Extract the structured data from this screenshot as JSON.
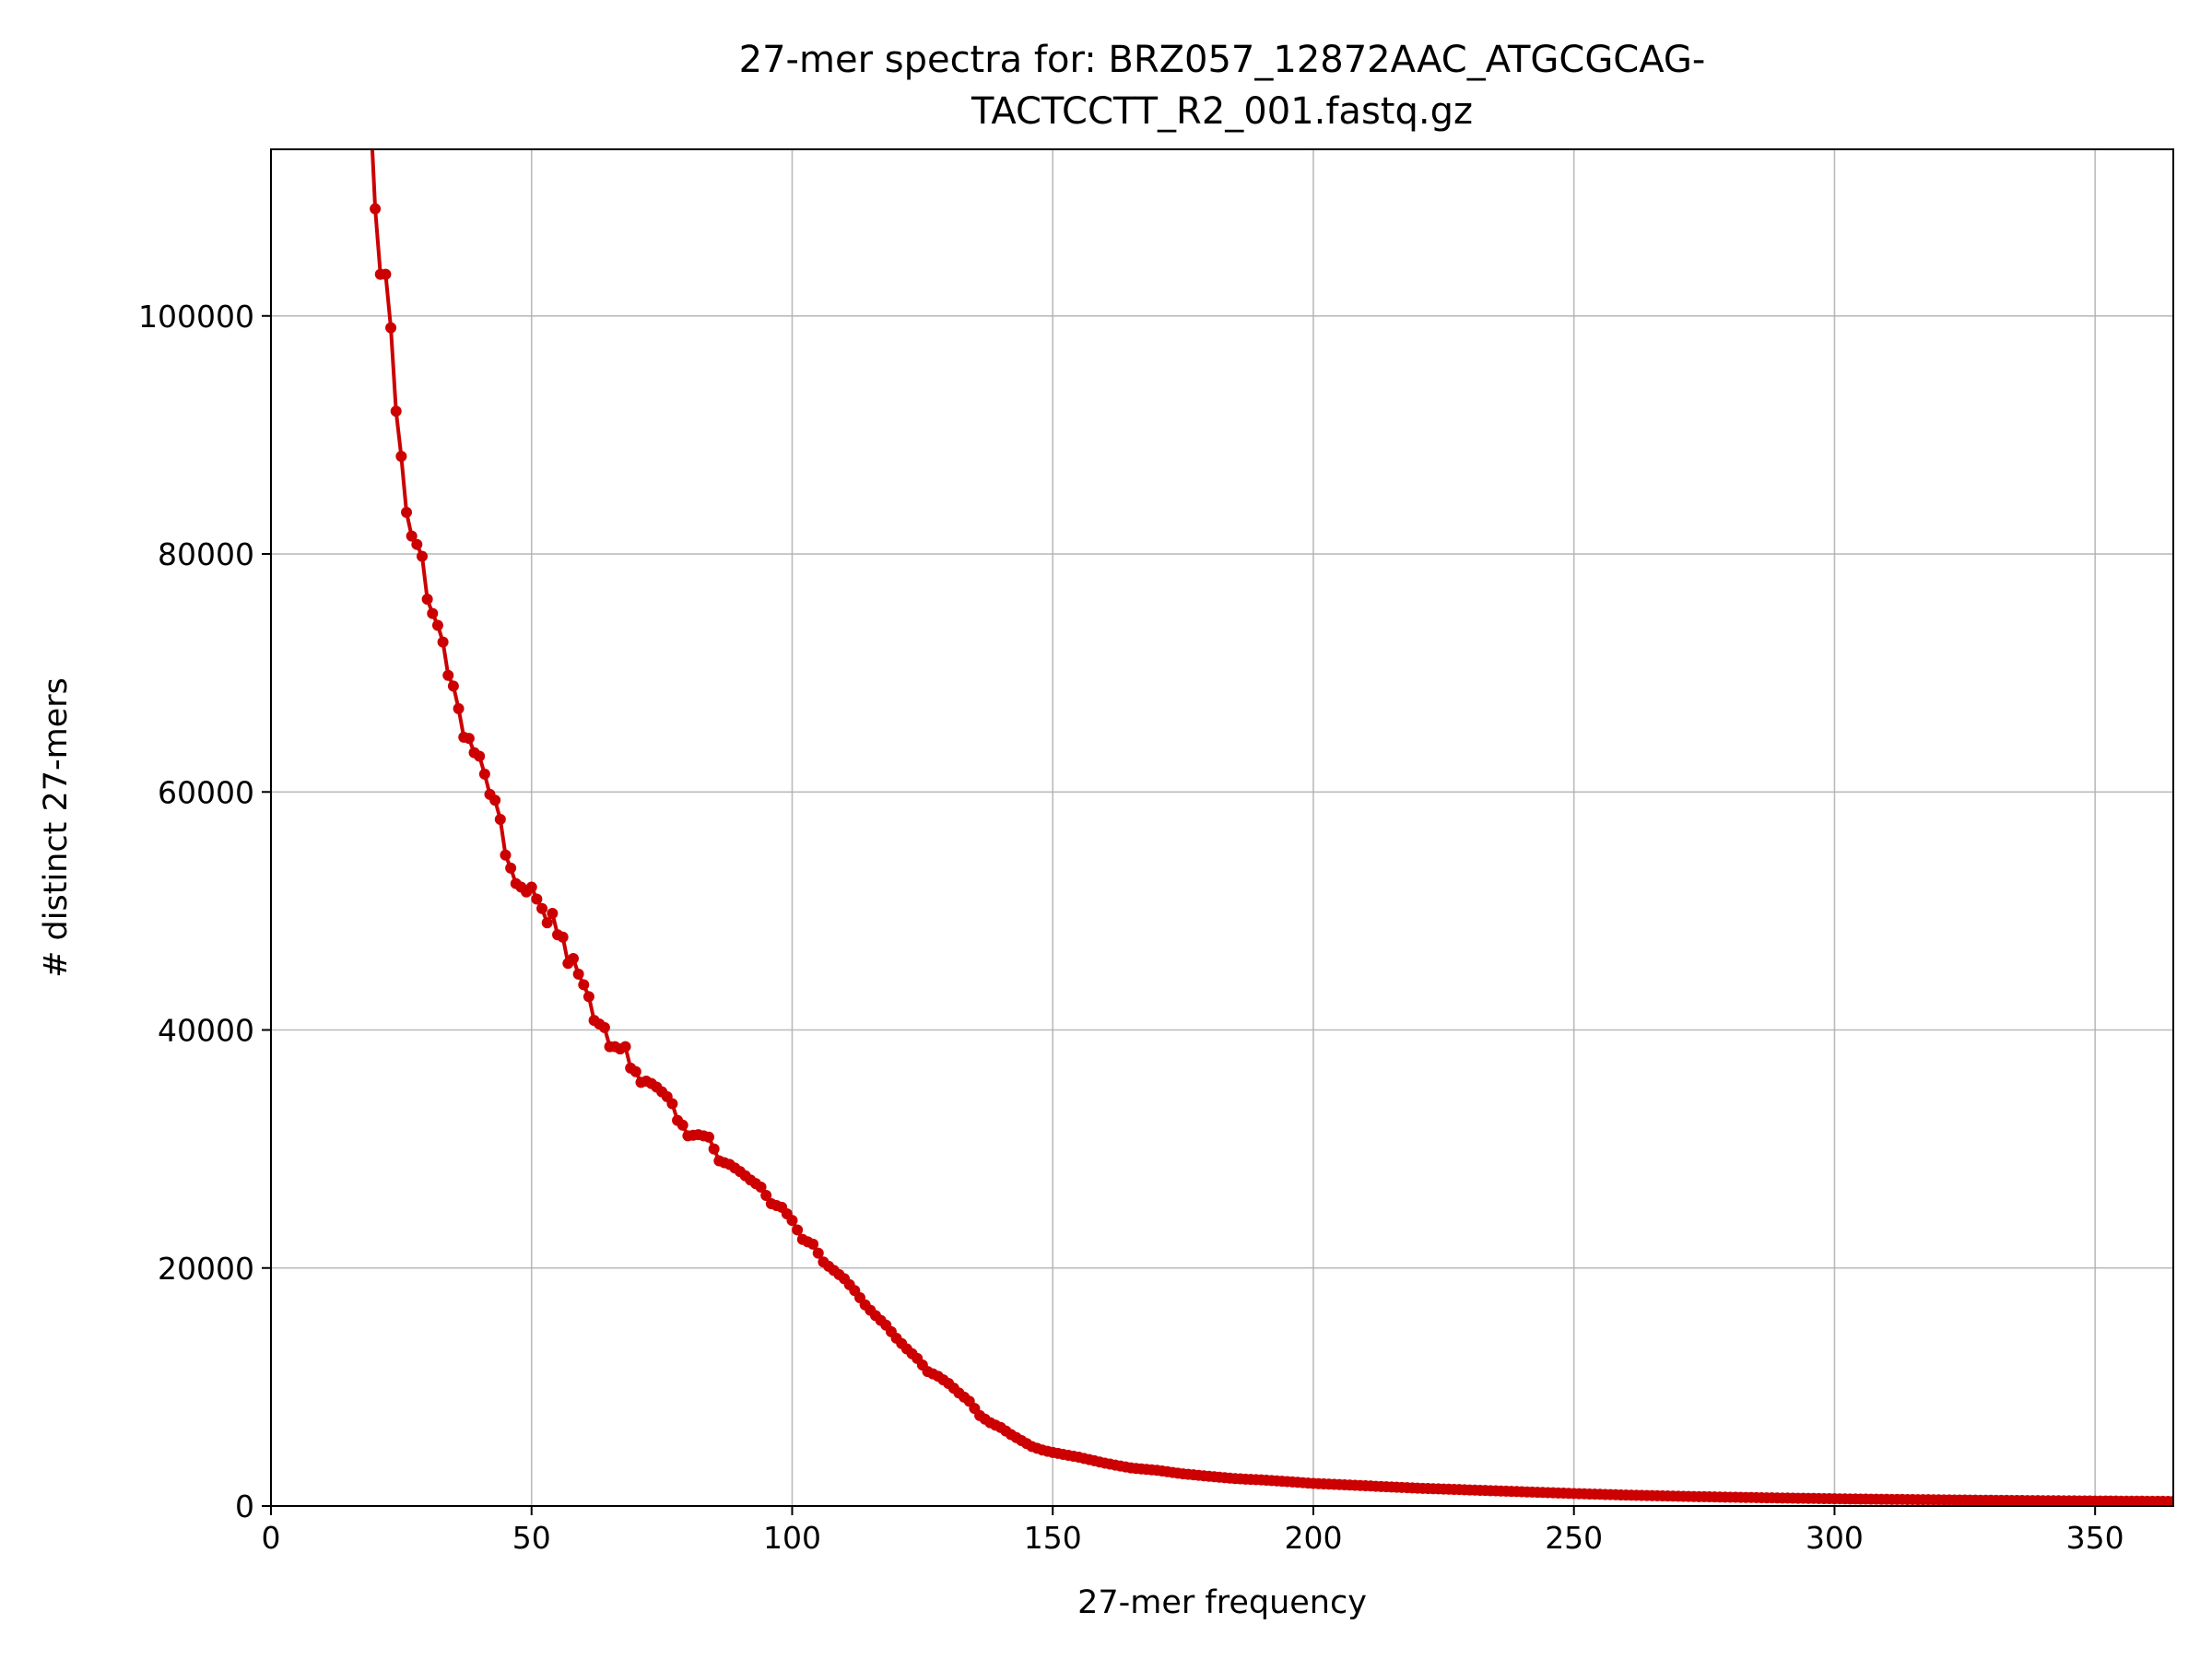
{
  "chart_data": {
    "type": "line",
    "title_lines": [
      "27-mer spectra for: BRZ057_12872AAC_ATGCGCAG-",
      "TACTCCTT_R2_001.fastq.gz"
    ],
    "xlabel": "27-mer frequency",
    "ylabel": "# distinct 27-mers",
    "xlim": [
      0,
      365
    ],
    "ylim": [
      0,
      114000
    ],
    "xticks": [
      0,
      50,
      100,
      150,
      200,
      250,
      300,
      350
    ],
    "yticks": [
      0,
      20000,
      40000,
      60000,
      80000,
      100000
    ],
    "grid": true,
    "legend": "none",
    "series": [
      {
        "color": "#cc0000",
        "marker": "circle",
        "anchors": [
          [
            20,
            109000
          ],
          [
            21,
            103500
          ],
          [
            22,
            103500
          ],
          [
            23,
            99000
          ],
          [
            24,
            92000
          ],
          [
            25,
            88200
          ],
          [
            26,
            83500
          ],
          [
            27,
            81500
          ],
          [
            28,
            80800
          ],
          [
            29,
            79800
          ],
          [
            30,
            76200
          ],
          [
            31,
            75000
          ],
          [
            32,
            74000
          ],
          [
            33,
            72600
          ],
          [
            34,
            69800
          ],
          [
            35,
            68900
          ],
          [
            36,
            67000
          ],
          [
            37,
            64600
          ],
          [
            38,
            64500
          ],
          [
            39,
            63300
          ],
          [
            40,
            63000
          ],
          [
            41,
            61500
          ],
          [
            42,
            59800
          ],
          [
            43,
            59300
          ],
          [
            44,
            57700
          ],
          [
            45,
            54700
          ],
          [
            46,
            53600
          ],
          [
            47,
            52300
          ],
          [
            48,
            52000
          ],
          [
            49,
            51600
          ],
          [
            50,
            52000
          ],
          [
            51,
            51000
          ],
          [
            52,
            50200
          ],
          [
            53,
            49000
          ],
          [
            54,
            49800
          ],
          [
            55,
            48000
          ],
          [
            56,
            47800
          ],
          [
            57,
            45600
          ],
          [
            58,
            46000
          ],
          [
            59,
            44700
          ],
          [
            60,
            43800
          ],
          [
            61,
            42800
          ],
          [
            62,
            40800
          ],
          [
            63,
            40500
          ],
          [
            64,
            40200
          ],
          [
            65,
            38600
          ],
          [
            66,
            38600
          ],
          [
            67,
            38400
          ],
          [
            68,
            38600
          ],
          [
            69,
            36800
          ],
          [
            70,
            36500
          ],
          [
            71,
            35600
          ],
          [
            72,
            35700
          ],
          [
            73,
            35500
          ],
          [
            74,
            35200
          ],
          [
            75,
            34800
          ],
          [
            76,
            34400
          ],
          [
            77,
            33800
          ],
          [
            78,
            32400
          ],
          [
            79,
            32000
          ],
          [
            80,
            31100
          ],
          [
            82,
            31200
          ],
          [
            84,
            31000
          ],
          [
            86,
            29000
          ],
          [
            88,
            28700
          ],
          [
            90,
            28100
          ],
          [
            92,
            27400
          ],
          [
            94,
            26800
          ],
          [
            96,
            25400
          ],
          [
            98,
            25100
          ],
          [
            100,
            24000
          ],
          [
            102,
            22400
          ],
          [
            104,
            22000
          ],
          [
            106,
            20500
          ],
          [
            108,
            19800
          ],
          [
            110,
            19100
          ],
          [
            112,
            18100
          ],
          [
            114,
            16900
          ],
          [
            116,
            16000
          ],
          [
            118,
            15200
          ],
          [
            120,
            14100
          ],
          [
            122,
            13200
          ],
          [
            124,
            12400
          ],
          [
            126,
            11300
          ],
          [
            128,
            10900
          ],
          [
            130,
            10300
          ],
          [
            132,
            9500
          ],
          [
            134,
            8800
          ],
          [
            136,
            7600
          ],
          [
            138,
            7000
          ],
          [
            140,
            6600
          ],
          [
            142,
            6000
          ],
          [
            144,
            5500
          ],
          [
            146,
            5000
          ],
          [
            148,
            4700
          ],
          [
            150,
            4500
          ],
          [
            155,
            4100
          ],
          [
            160,
            3600
          ],
          [
            165,
            3200
          ],
          [
            170,
            3000
          ],
          [
            175,
            2700
          ],
          [
            180,
            2500
          ],
          [
            185,
            2300
          ],
          [
            190,
            2200
          ],
          [
            195,
            2050
          ],
          [
            200,
            1900
          ],
          [
            210,
            1700
          ],
          [
            220,
            1500
          ],
          [
            230,
            1350
          ],
          [
            240,
            1200
          ],
          [
            250,
            1050
          ],
          [
            260,
            920
          ],
          [
            270,
            820
          ],
          [
            280,
            740
          ],
          [
            290,
            670
          ],
          [
            300,
            610
          ],
          [
            310,
            560
          ],
          [
            320,
            520
          ],
          [
            330,
            480
          ],
          [
            340,
            450
          ],
          [
            350,
            420
          ],
          [
            360,
            400
          ],
          [
            365,
            390
          ]
        ]
      }
    ]
  }
}
